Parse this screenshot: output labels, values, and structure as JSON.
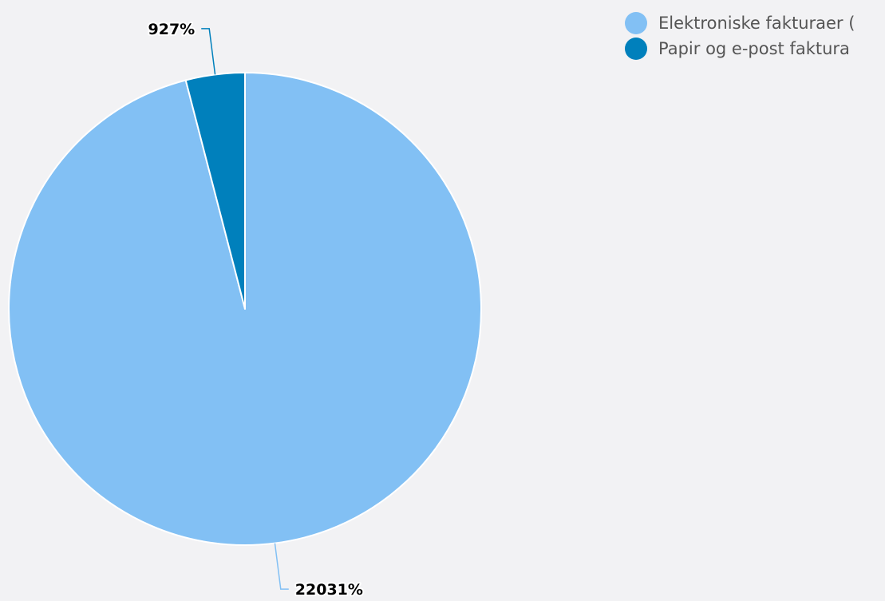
{
  "chart_data": {
    "type": "pie",
    "series": [
      {
        "name": "Elektroniske fakturaer (",
        "value": 22031,
        "label": "22031%",
        "color": "#82c0f4"
      },
      {
        "name": "Papir og e-post faktura",
        "value": 927,
        "label": "927%",
        "color": "#0080bc"
      }
    ],
    "legend_placement": "top-right"
  }
}
